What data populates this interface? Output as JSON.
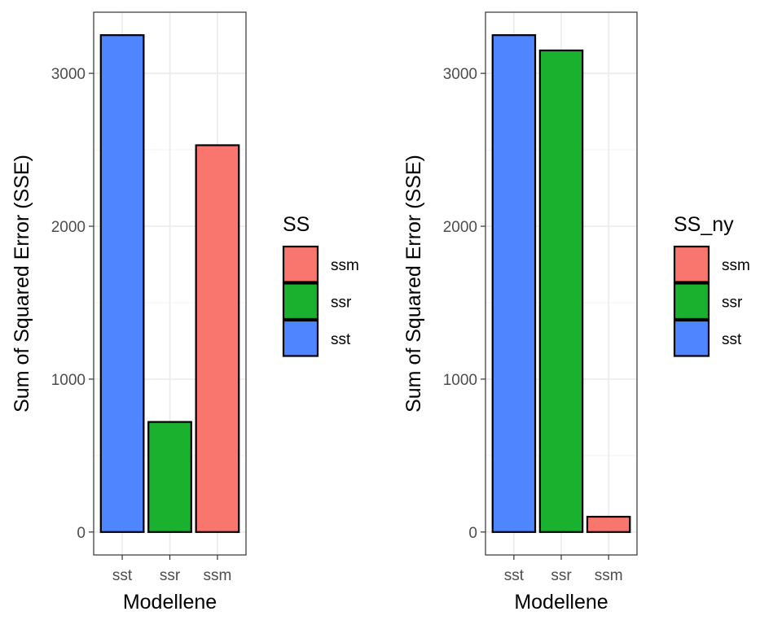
{
  "colors": {
    "ssm": "#F8766D",
    "ssr": "#1AB12E",
    "sst": "#4F86FF"
  },
  "chart_data": [
    {
      "type": "bar",
      "categories": [
        "sst",
        "ssr",
        "ssm"
      ],
      "values": [
        3250,
        720,
        2530
      ],
      "fill_by": [
        "sst",
        "ssr",
        "ssm"
      ],
      "xlabel": "Modellene",
      "ylabel": "Sum of Squared Error (SSE)",
      "ylim": [
        -150,
        3400
      ],
      "yticks": [
        0,
        1000,
        2000,
        3000
      ],
      "grid": true,
      "legend": {
        "title": "SS",
        "position": "right",
        "entries": [
          "ssm",
          "ssr",
          "sst"
        ]
      }
    },
    {
      "type": "bar",
      "categories": [
        "sst",
        "ssr",
        "ssm"
      ],
      "values": [
        3250,
        3150,
        100
      ],
      "fill_by": [
        "sst",
        "ssr",
        "ssm"
      ],
      "xlabel": "Modellene",
      "ylabel": "Sum of Squared Error (SSE)",
      "ylim": [
        -150,
        3400
      ],
      "yticks": [
        0,
        1000,
        2000,
        3000
      ],
      "grid": true,
      "legend": {
        "title": "SS_ny",
        "position": "right",
        "entries": [
          "ssm",
          "ssr",
          "sst"
        ]
      }
    }
  ]
}
